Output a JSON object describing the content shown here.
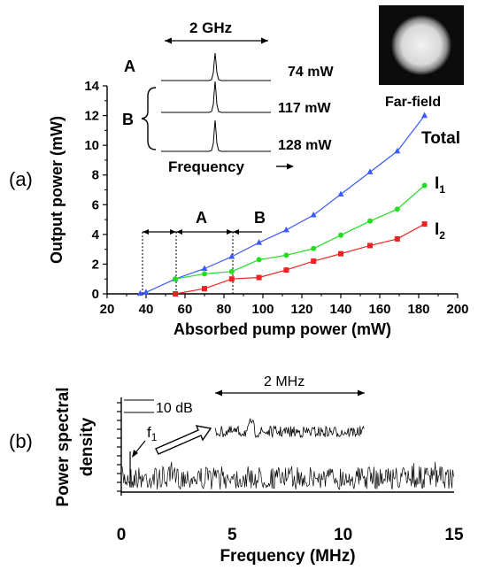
{
  "panel_a": {
    "panel_label": "(a)",
    "inset_span_label": "2 GHz",
    "inset_xlabel": "Frequency",
    "region_A": "A",
    "region_B": "B",
    "spectra": [
      {
        "label": "74 mW",
        "group": "A"
      },
      {
        "label": "117 mW",
        "group": "B"
      },
      {
        "label": "128 mW",
        "group": "B"
      }
    ],
    "farfield_label": "Far-field",
    "series_labels": {
      "total": "Total",
      "l1_main": "I",
      "l1_sub": "1",
      "l2_main": "I",
      "l2_sub": "2"
    }
  },
  "panel_b": {
    "panel_label": "(b)",
    "span_label": "2 MHz",
    "scale_label": "10 dB",
    "peak_label_main": "f",
    "peak_label_sub": "1"
  },
  "colors": {
    "total": "#3b5bfd",
    "l1": "#22dd22",
    "l2": "#ee2222"
  },
  "chart_data": [
    {
      "type": "line",
      "xlabel": "Absorbed pump power (mW)",
      "ylabel": "Output power (mW)",
      "xlim": [
        20,
        200
      ],
      "ylim": [
        0,
        14
      ],
      "xticks": [
        20,
        40,
        60,
        80,
        100,
        120,
        140,
        160,
        180,
        200
      ],
      "yticks": [
        0,
        2,
        4,
        6,
        8,
        10,
        12,
        14
      ],
      "series": [
        {
          "name": "Total",
          "marker": "triangle",
          "x": [
            37,
            40,
            55,
            70,
            84,
            98,
            112,
            126,
            140,
            155,
            169,
            183
          ],
          "y": [
            0.02,
            0.1,
            1.0,
            1.7,
            2.5,
            3.45,
            4.3,
            5.3,
            6.7,
            8.2,
            9.6,
            12.0
          ]
        },
        {
          "name": "I1",
          "marker": "circle",
          "x": [
            55,
            70,
            84,
            98,
            112,
            126,
            140,
            155,
            169,
            183
          ],
          "y": [
            1.0,
            1.35,
            1.5,
            2.3,
            2.6,
            3.05,
            3.95,
            4.9,
            5.7,
            7.3
          ]
        },
        {
          "name": "I2",
          "marker": "square",
          "x": [
            55,
            70,
            84,
            98,
            112,
            126,
            140,
            155,
            169,
            183
          ],
          "y": [
            0.0,
            0.35,
            1.0,
            1.1,
            1.6,
            2.2,
            2.7,
            3.25,
            3.7,
            4.7
          ]
        }
      ]
    },
    {
      "type": "line",
      "xlabel": "Frequency (MHz)",
      "ylabel": "Power spectral density",
      "xlim": [
        0,
        15
      ],
      "xticks": [
        0,
        5,
        10,
        15
      ],
      "series": [
        {
          "name": "",
          "x": [
            0.4
          ],
          "y": [
            1.0
          ]
        }
      ]
    }
  ]
}
